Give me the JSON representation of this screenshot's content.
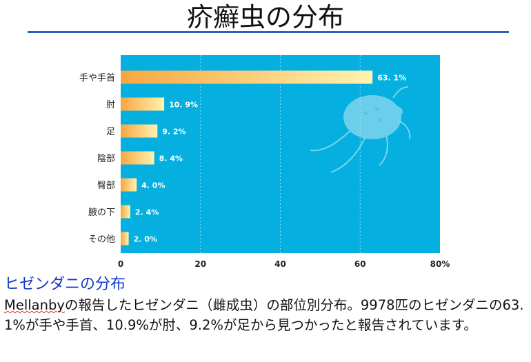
{
  "slide": {
    "title": "疥癬虫の分布",
    "subheading": "ヒゼンダニの分布",
    "body_lead": "Mellanby",
    "body_rest": "の報告したヒゼンダニ（雌成虫）の部位別分布。9978匹のヒゼンダニの63.1%が手や手首、10.9%が肘、9.2%が足から見つかったと報告されています。"
  },
  "colors": {
    "plot_background": "#05b0e0",
    "bar_start": "#f7a640",
    "bar_end": "#fff3b0",
    "label_text": "#ffffff",
    "title_rule": "#2f5fbf",
    "subheading": "#1538c4"
  },
  "icon": "mite-illustration",
  "chart_data": {
    "type": "bar",
    "orientation": "horizontal",
    "categories": [
      "手や手首",
      "肘",
      "足",
      "陰部",
      "臀部",
      "腋の下",
      "その他"
    ],
    "values": [
      63.1,
      10.9,
      9.2,
      8.4,
      4.0,
      2.4,
      2.0
    ],
    "value_labels": [
      "63. 1%",
      "10. 9%",
      "9. 2%",
      "8. 4%",
      "4. 0%",
      "2. 4%",
      "2. 0%"
    ],
    "xlim": [
      0,
      80
    ],
    "xticks": [
      0,
      20,
      40,
      60,
      80
    ],
    "xtick_labels": [
      "0",
      "20",
      "40",
      "60",
      "80%"
    ],
    "grid": "vertical-dashed"
  }
}
